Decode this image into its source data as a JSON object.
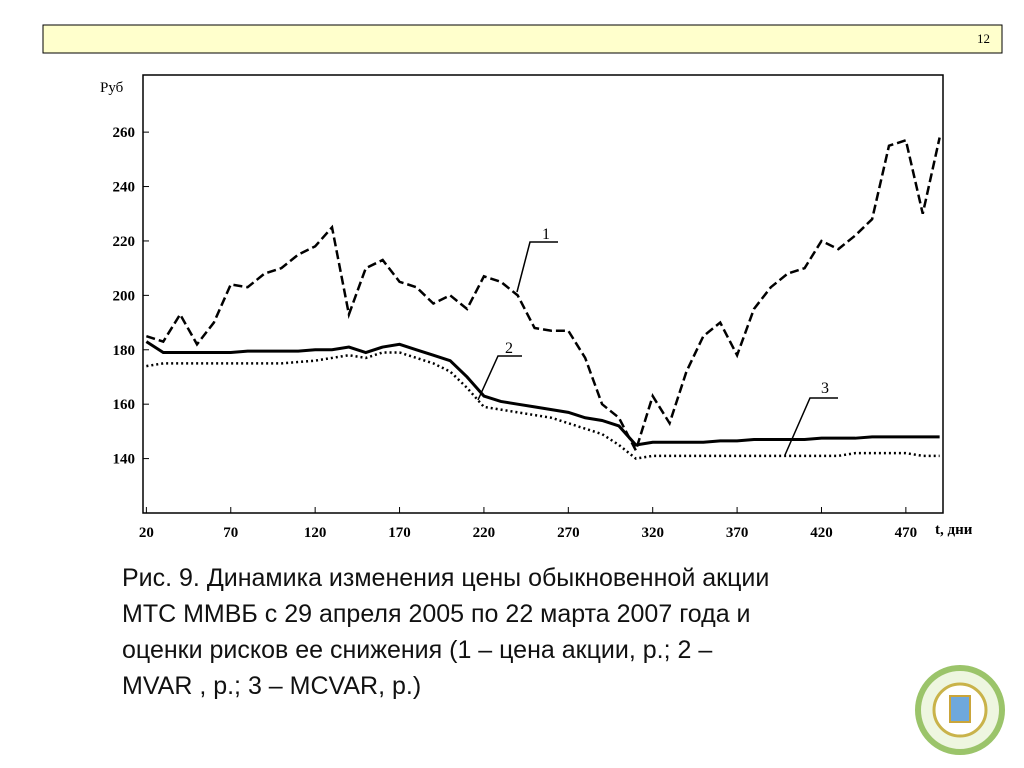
{
  "slide_number": "12",
  "caption": [
    "Рис. 9. Динамика изменения цены обыкновенной акции",
    "МТС ММВБ с 29 апреля 2005 по 22 марта 2007 года и",
    "оценки рисков ее снижения (1 – цена акции, р.; 2 –",
    "MVAR , р.; 3 – MCVAR, р.)"
  ],
  "chart_data": {
    "type": "line",
    "y_label": "Руб",
    "x_label": "t, дни",
    "annotations": [
      "1",
      "2",
      "3"
    ],
    "x": [
      20,
      30,
      40,
      50,
      60,
      70,
      80,
      90,
      100,
      110,
      120,
      130,
      140,
      150,
      160,
      170,
      180,
      190,
      200,
      210,
      220,
      230,
      240,
      250,
      260,
      270,
      280,
      290,
      300,
      310,
      320,
      330,
      340,
      350,
      360,
      370,
      380,
      390,
      400,
      410,
      420,
      430,
      440,
      450,
      460,
      470,
      480,
      490
    ],
    "series": [
      {
        "name": "1",
        "color": "#000000",
        "dash": "dashed",
        "values": [
          185,
          183,
          193,
          182,
          190,
          204,
          203,
          208,
          210,
          215,
          218,
          225,
          193,
          210,
          213,
          205,
          203,
          197,
          200,
          195,
          207,
          205,
          200,
          188,
          187,
          187,
          177,
          160,
          155,
          143,
          163,
          153,
          172,
          185,
          190,
          178,
          195,
          203,
          208,
          210,
          220,
          217,
          222,
          228,
          255,
          257,
          230,
          258
        ]
      },
      {
        "name": "2",
        "color": "#000000",
        "dash": "solid",
        "values": [
          183,
          179,
          179,
          179,
          179,
          179,
          179.5,
          179.5,
          179.5,
          179.5,
          180,
          180,
          181,
          179,
          181,
          182,
          180,
          178,
          176,
          170,
          163,
          161,
          160,
          159,
          158,
          157,
          155,
          154,
          152,
          145,
          146,
          146,
          146,
          146,
          146.5,
          146.5,
          147,
          147,
          147,
          147,
          147.5,
          147.5,
          147.5,
          148,
          148,
          148,
          148,
          148
        ]
      },
      {
        "name": "3",
        "color": "#000000",
        "dash": "dotted",
        "values": [
          174,
          175,
          175,
          175,
          175,
          175,
          175,
          175,
          175,
          175.5,
          176,
          177,
          178,
          177,
          179,
          179,
          177,
          175,
          172,
          166,
          159,
          158,
          157,
          156,
          155,
          153,
          151,
          149,
          145,
          140,
          141,
          141,
          141,
          141,
          141,
          141,
          141,
          141,
          141,
          141,
          141,
          141,
          142,
          142,
          142,
          142,
          141,
          141
        ]
      }
    ],
    "xlim": [
      18,
      492
    ],
    "ylim": [
      120,
      281
    ],
    "xticks": [
      20,
      70,
      120,
      170,
      220,
      270,
      320,
      370,
      420,
      470
    ],
    "yticks": [
      140,
      160,
      180,
      200,
      220,
      240,
      260
    ]
  }
}
